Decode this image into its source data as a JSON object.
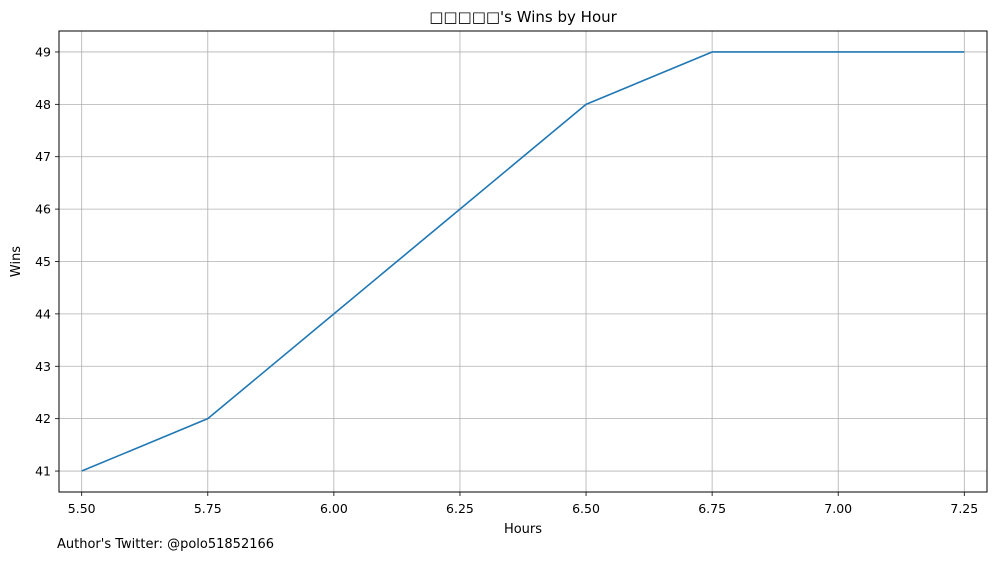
{
  "chart_data": {
    "type": "line",
    "title": "□□□□□'s Wins by Hour",
    "xlabel": "Hours",
    "ylabel": "Wins",
    "xlim": [
      5.455,
      7.295
    ],
    "ylim": [
      40.6,
      49.4
    ],
    "grid": true,
    "x_ticks": [
      "5.50",
      "5.75",
      "6.00",
      "6.25",
      "6.50",
      "6.75",
      "7.00",
      "7.25"
    ],
    "y_ticks": [
      "41",
      "42",
      "43",
      "44",
      "45",
      "46",
      "47",
      "48",
      "49"
    ],
    "series": [
      {
        "x": [
          5.5,
          5.75,
          6.0,
          6.25,
          6.5,
          6.75,
          7.0,
          7.25
        ],
        "y": [
          41,
          42,
          44,
          46,
          48,
          49,
          49,
          49
        ],
        "color": "#1f77b4"
      }
    ]
  },
  "footer": {
    "text": "Author's Twitter: @polo51852166"
  }
}
